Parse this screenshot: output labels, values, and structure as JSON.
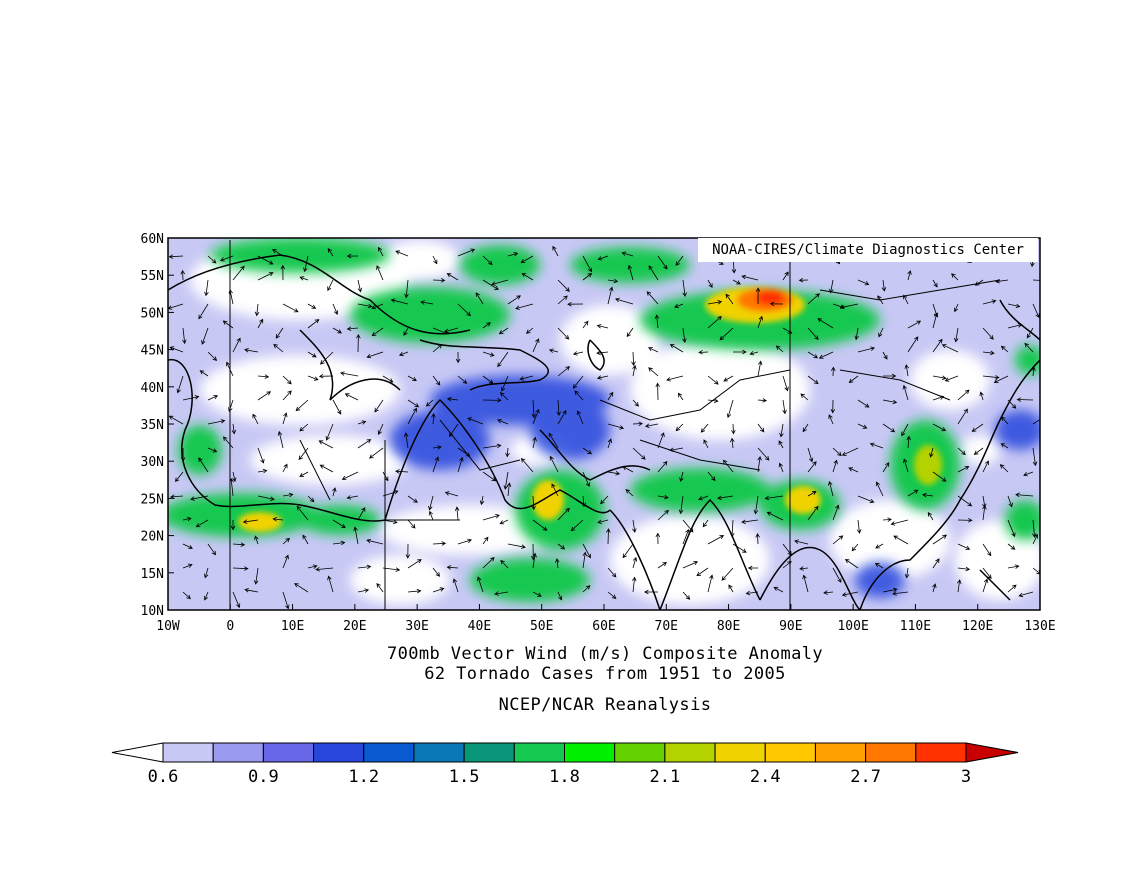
{
  "map": {
    "credit": "NOAA-CIRES/Climate Diagnostics Center",
    "lat_labels": [
      "60N",
      "55N",
      "50N",
      "45N",
      "40N",
      "35N",
      "30N",
      "25N",
      "20N",
      "15N",
      "10N"
    ],
    "lon_labels": [
      "10W",
      "0",
      "10E",
      "20E",
      "30E",
      "40E",
      "50E",
      "60E",
      "70E",
      "80E",
      "90E",
      "100E",
      "110E",
      "120E",
      "130E"
    ],
    "lat_range": [
      10,
      60
    ],
    "lon_range": [
      -10,
      130
    ]
  },
  "caption": {
    "line1": "700mb Vector Wind (m/s) Composite Anomaly",
    "line2": "62 Tornado Cases from 1951 to 2005",
    "line3": "NCEP/NCAR Reanalysis"
  },
  "colorbar": {
    "labels": [
      "0.6",
      "0.9",
      "1.2",
      "1.5",
      "1.8",
      "2.1",
      "2.4",
      "2.7",
      "3"
    ],
    "colors": [
      "#c8c8f5",
      "#9a9af0",
      "#6868e8",
      "#2846dc",
      "#0a5ad2",
      "#0a78b4",
      "#0a9678",
      "#14c850",
      "#00f000",
      "#64d200",
      "#b4d200",
      "#f0d200",
      "#ffc800",
      "#ffa000",
      "#ff7800",
      "#ff3200",
      "#c80000"
    ],
    "lower_color": "#ffffff",
    "upper_color": "#c80000"
  }
}
